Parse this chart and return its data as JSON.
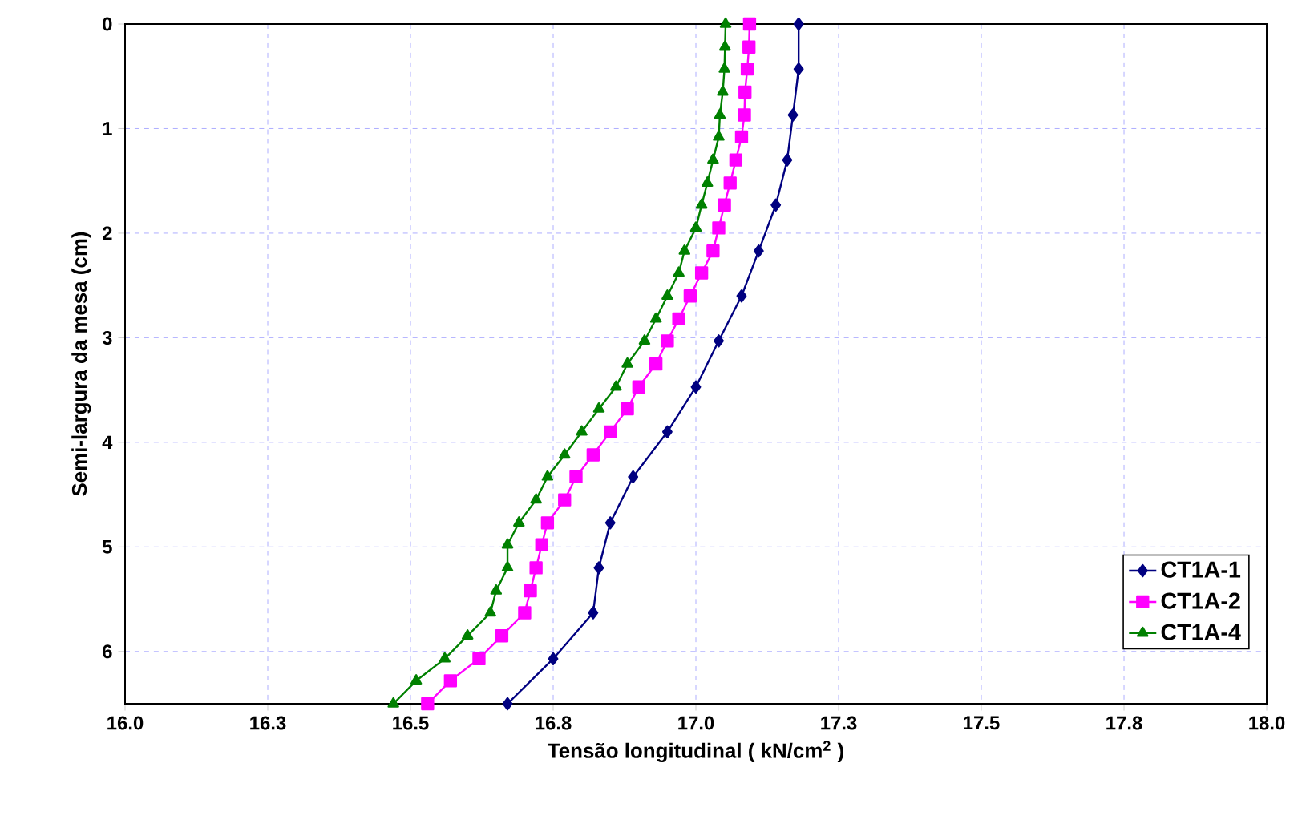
{
  "chart_data": {
    "type": "line",
    "xlabel": "Tensão longitudinal ( kN/cm$^{2}$ )",
    "ylabel": "Semi-largura da mesa (cm)",
    "xlim": [
      16.0,
      18.0
    ],
    "ylim": [
      6.5,
      0
    ],
    "xticks": [
      {
        "value": 16.0,
        "label": "16.0"
      },
      {
        "value": 16.25,
        "label": "16.3"
      },
      {
        "value": 16.5,
        "label": "16.5"
      },
      {
        "value": 16.75,
        "label": "16.8"
      },
      {
        "value": 17.0,
        "label": "17.0"
      },
      {
        "value": 17.25,
        "label": "17.3"
      },
      {
        "value": 17.5,
        "label": "17.5"
      },
      {
        "value": 17.75,
        "label": "17.8"
      },
      {
        "value": 18.0,
        "label": "18.0"
      }
    ],
    "yticks": [
      0,
      1,
      2,
      3,
      4,
      5,
      6
    ],
    "grid": true,
    "legend": "bottom right",
    "line_style": "solid",
    "series": [
      {
        "name": "CT1A-1",
        "color": "#000080",
        "marker": "diamond",
        "x": [
          17.18,
          17.18,
          17.17,
          17.16,
          17.14,
          17.11,
          17.08,
          17.04,
          17.0,
          16.95,
          16.89,
          16.85,
          16.83,
          16.82,
          16.75,
          16.67
        ],
        "values": [
          0,
          0.43,
          0.87,
          1.3,
          1.73,
          2.17,
          2.6,
          3.03,
          3.47,
          3.9,
          4.33,
          4.77,
          5.2,
          5.63,
          6.07,
          6.5
        ]
      },
      {
        "name": "CT1A-2",
        "color": "#ff00ff",
        "marker": "square",
        "x": [
          17.094,
          17.093,
          17.09,
          17.086,
          17.085,
          17.08,
          17.07,
          17.06,
          17.05,
          17.04,
          17.03,
          17.01,
          16.99,
          16.97,
          16.95,
          16.93,
          16.9,
          16.88,
          16.85,
          16.82,
          16.79,
          16.77,
          16.74,
          16.73,
          16.72,
          16.71,
          16.7,
          16.66,
          16.62,
          16.57,
          16.53
        ],
        "values": [
          0,
          0.22,
          0.43,
          0.65,
          0.87,
          1.08,
          1.3,
          1.52,
          1.73,
          1.95,
          2.17,
          2.38,
          2.6,
          2.82,
          3.03,
          3.25,
          3.47,
          3.68,
          3.9,
          4.12,
          4.33,
          4.55,
          4.77,
          4.98,
          5.2,
          5.42,
          5.63,
          5.85,
          6.07,
          6.28,
          6.5
        ]
      },
      {
        "name": "CT1A-4",
        "color": "#008000",
        "marker": "triangle",
        "x": [
          17.052,
          17.051,
          17.05,
          17.047,
          17.042,
          17.04,
          17.03,
          17.02,
          17.01,
          17.0,
          16.98,
          16.97,
          16.95,
          16.93,
          16.91,
          16.88,
          16.86,
          16.83,
          16.8,
          16.77,
          16.74,
          16.72,
          16.69,
          16.67,
          16.67,
          16.65,
          16.64,
          16.6,
          16.56,
          16.51,
          16.47
        ],
        "values": [
          0,
          0.22,
          0.43,
          0.65,
          0.87,
          1.08,
          1.3,
          1.52,
          1.73,
          1.95,
          2.17,
          2.38,
          2.6,
          2.82,
          3.03,
          3.25,
          3.47,
          3.68,
          3.9,
          4.12,
          4.33,
          4.55,
          4.77,
          4.98,
          5.2,
          5.42,
          5.63,
          5.85,
          6.07,
          6.28,
          6.5
        ]
      }
    ]
  }
}
